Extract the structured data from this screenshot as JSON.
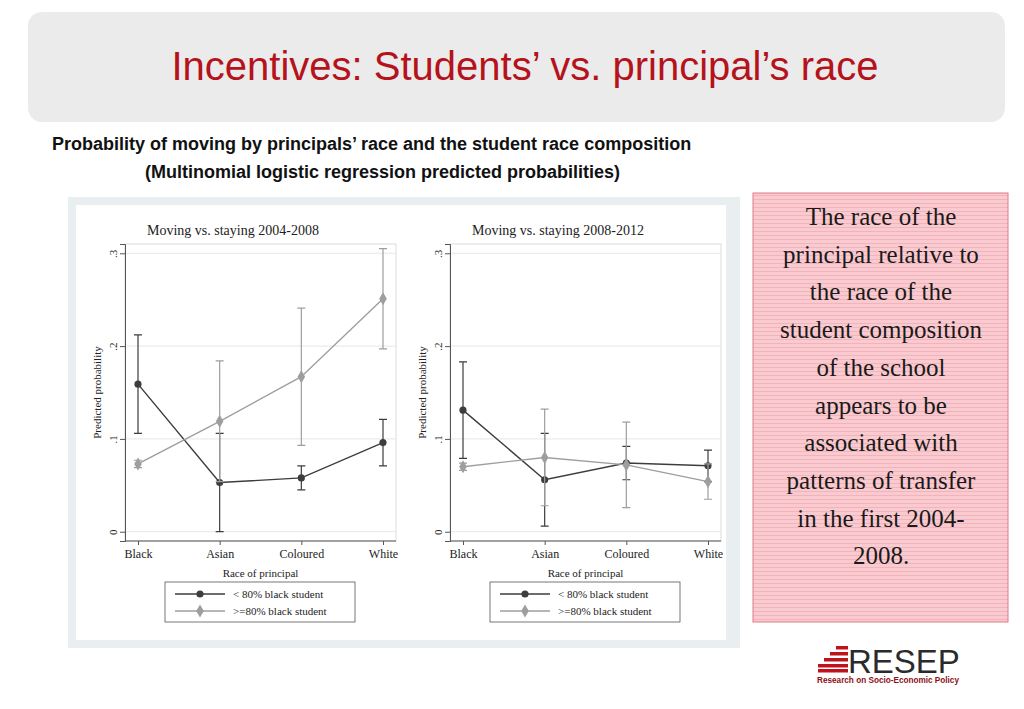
{
  "slide": {
    "title": "Incentives: Students’ vs. principal’s race",
    "subtitle": [
      "Probability of moving by principals’ race and the student race composition",
      "(Multinomial logistic regression predicted probabilities)"
    ],
    "note": [
      "The race of the",
      "principal relative to",
      "the race of the",
      "student composition",
      "of the school",
      "appears to be",
      "associated with",
      "patterns of transfer",
      "in the first 2004-",
      "2008."
    ],
    "logo": "RESEP",
    "logo_caption": "Research on Socio-Economic Policy"
  },
  "chart_data": [
    {
      "type": "line",
      "title": "Moving vs. staying 2004-2008",
      "categories": [
        "Black",
        "Asian",
        "Coloured",
        "White"
      ],
      "x_label": "Race of principal",
      "y_label": "Predicted probability",
      "ylim": [
        -0.01,
        0.31
      ],
      "yticks": [
        0,
        {
          "value": 0.1,
          "label": ".1"
        },
        {
          "value": 0.2,
          "label": ".2"
        },
        {
          "value": 0.3,
          "label": ".3"
        }
      ],
      "grid": true,
      "legend": "bottom",
      "series": [
        {
          "name": "< 80% black student",
          "color": "#3d3d3d",
          "marker": "circle",
          "values": [
            0.159,
            0.053,
            0.058,
            0.096
          ],
          "errors": [
            0.053,
            0.053,
            0.013,
            0.025
          ]
        },
        {
          "name": ">=80% black student",
          "color": "#9e9e9e",
          "marker": "diamond",
          "values": [
            0.073,
            0.119,
            0.167,
            0.251
          ],
          "errors": [
            0.004,
            0.065,
            0.074,
            0.054
          ]
        }
      ]
    },
    {
      "type": "line",
      "title": "Moving vs. staying 2008-2012",
      "categories": [
        "Black",
        "Asian",
        "Coloured",
        "White"
      ],
      "x_label": "Race of principal",
      "y_label": "Predicted probability",
      "ylim": [
        -0.01,
        0.31
      ],
      "yticks": [
        0,
        {
          "value": 0.1,
          "label": ".1"
        },
        {
          "value": 0.2,
          "label": ".2"
        },
        {
          "value": 0.3,
          "label": ".3"
        }
      ],
      "grid": true,
      "legend": "bottom",
      "series": [
        {
          "name": "< 80% black student",
          "color": "#3d3d3d",
          "marker": "circle",
          "values": [
            0.131,
            0.056,
            0.074,
            0.071
          ],
          "errors": [
            0.052,
            0.05,
            0.018,
            0.017
          ]
        },
        {
          "name": ">=80% black student",
          "color": "#9e9e9e",
          "marker": "diamond",
          "values": [
            0.07,
            0.08,
            0.072,
            0.054
          ],
          "errors": [
            0.004,
            0.052,
            0.046,
            0.019
          ]
        }
      ]
    }
  ]
}
